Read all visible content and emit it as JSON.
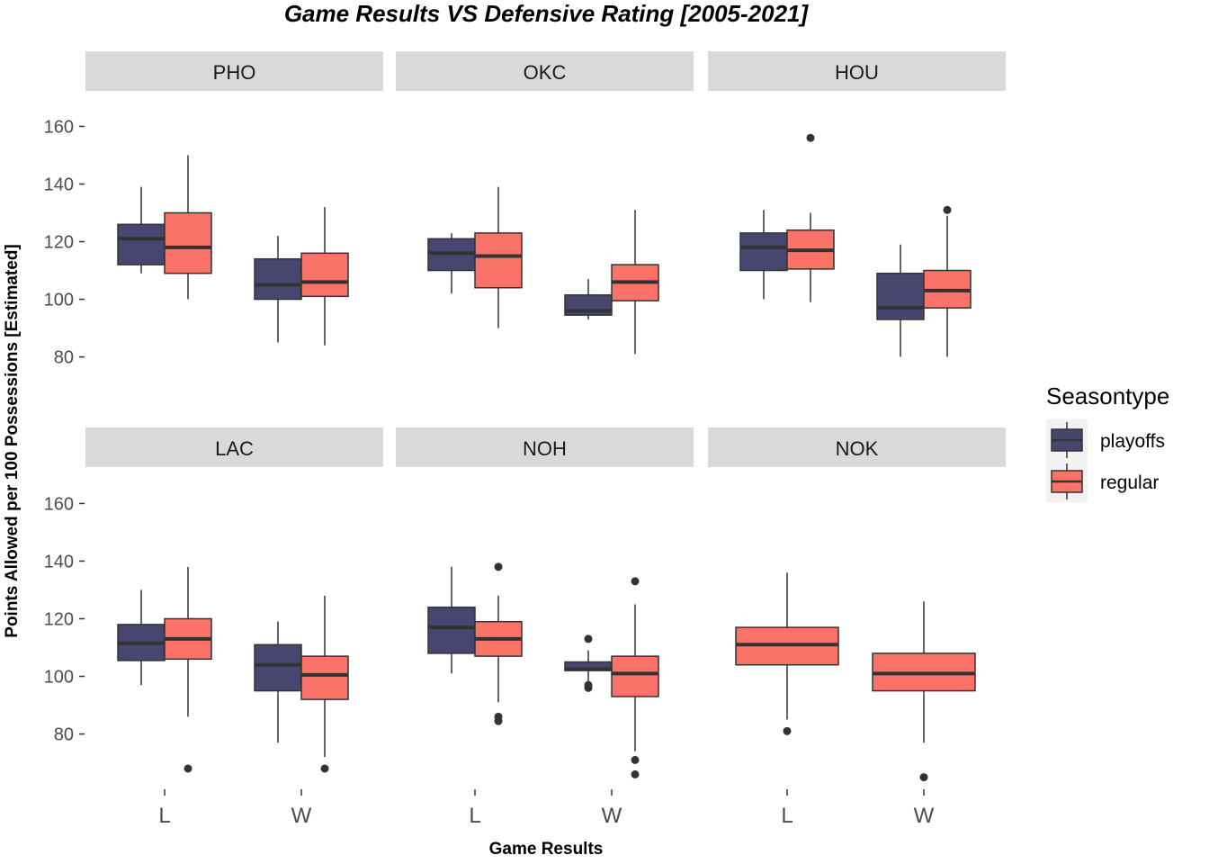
{
  "chart_data": {
    "type": "boxplot",
    "title": "Game Results  VS  Defensive Rating [2005-2021]",
    "xlabel": "Game Results",
    "ylabel": "Points Allowed per 100 Possessions [Estimated]",
    "categories": [
      "L",
      "W"
    ],
    "ylim": [
      63,
      172
    ],
    "yticks": [
      80,
      100,
      120,
      140,
      160
    ],
    "grid": false,
    "legend": {
      "title": "Seasontype",
      "position": "right",
      "entries": [
        {
          "name": "playoffs",
          "color": "#47466f"
        },
        {
          "name": "regular",
          "color": "#fa7268"
        }
      ]
    },
    "panels": [
      {
        "team": "PHO",
        "boxes": [
          {
            "x": "L",
            "series": "playoffs",
            "min": 109,
            "q1": 112,
            "median": 121,
            "q3": 126,
            "max": 139,
            "outliers": []
          },
          {
            "x": "L",
            "series": "regular",
            "min": 100,
            "q1": 109,
            "median": 118,
            "q3": 130,
            "max": 150,
            "outliers": []
          },
          {
            "x": "W",
            "series": "playoffs",
            "min": 85,
            "q1": 100,
            "median": 105,
            "q3": 114,
            "max": 122,
            "outliers": []
          },
          {
            "x": "W",
            "series": "regular",
            "min": 84,
            "q1": 101,
            "median": 106,
            "q3": 116,
            "max": 132,
            "outliers": []
          }
        ]
      },
      {
        "team": "OKC",
        "boxes": [
          {
            "x": "L",
            "series": "playoffs",
            "min": 102,
            "q1": 110,
            "median": 116,
            "q3": 121,
            "max": 123,
            "outliers": []
          },
          {
            "x": "L",
            "series": "regular",
            "min": 90,
            "q1": 104,
            "median": 115,
            "q3": 123,
            "max": 139,
            "outliers": []
          },
          {
            "x": "W",
            "series": "playoffs",
            "min": 93,
            "q1": 94.5,
            "median": 96,
            "q3": 101.5,
            "max": 107,
            "outliers": []
          },
          {
            "x": "W",
            "series": "regular",
            "min": 81,
            "q1": 99.5,
            "median": 106,
            "q3": 112,
            "max": 131,
            "outliers": []
          }
        ]
      },
      {
        "team": "HOU",
        "boxes": [
          {
            "x": "L",
            "series": "playoffs",
            "min": 100,
            "q1": 110,
            "median": 118,
            "q3": 123,
            "max": 131,
            "outliers": []
          },
          {
            "x": "L",
            "series": "regular",
            "min": 99,
            "q1": 110.5,
            "median": 117,
            "q3": 124,
            "max": 130,
            "outliers": [
              156
            ]
          },
          {
            "x": "W",
            "series": "playoffs",
            "min": 80,
            "q1": 93,
            "median": 97,
            "q3": 109,
            "max": 119,
            "outliers": []
          },
          {
            "x": "W",
            "series": "regular",
            "min": 80,
            "q1": 97,
            "median": 103,
            "q3": 110,
            "max": 129,
            "outliers": [
              131
            ]
          }
        ]
      },
      {
        "team": "LAC",
        "boxes": [
          {
            "x": "L",
            "series": "playoffs",
            "min": 97,
            "q1": 105.5,
            "median": 111.5,
            "q3": 118,
            "max": 130,
            "outliers": []
          },
          {
            "x": "L",
            "series": "regular",
            "min": 86,
            "q1": 106,
            "median": 113,
            "q3": 120,
            "max": 138,
            "outliers": [
              68
            ]
          },
          {
            "x": "W",
            "series": "playoffs",
            "min": 77,
            "q1": 95,
            "median": 104,
            "q3": 111,
            "max": 119,
            "outliers": []
          },
          {
            "x": "W",
            "series": "regular",
            "min": 72,
            "q1": 92,
            "median": 100.5,
            "q3": 107,
            "max": 128,
            "outliers": [
              68
            ]
          }
        ]
      },
      {
        "team": "NOH",
        "boxes": [
          {
            "x": "L",
            "series": "playoffs",
            "min": 101,
            "q1": 108,
            "median": 117,
            "q3": 124,
            "max": 138,
            "outliers": []
          },
          {
            "x": "L",
            "series": "regular",
            "min": 91,
            "q1": 107,
            "median": 113,
            "q3": 119,
            "max": 128,
            "outliers": [
              138,
              86,
              84.5
            ]
          },
          {
            "x": "W",
            "series": "playoffs",
            "min": 98,
            "q1": 102,
            "median": 102.5,
            "q3": 105,
            "max": 109,
            "outliers": [
              113,
              97,
              96
            ]
          },
          {
            "x": "W",
            "series": "regular",
            "min": 74,
            "q1": 93,
            "median": 101,
            "q3": 107,
            "max": 125,
            "outliers": [
              133,
              71,
              66
            ]
          }
        ]
      },
      {
        "team": "NOK",
        "boxes": [
          {
            "x": "L",
            "series": "regular",
            "min": 85,
            "q1": 104,
            "median": 111,
            "q3": 117,
            "max": 136,
            "outliers": [
              81
            ]
          },
          {
            "x": "W",
            "series": "regular",
            "min": 77,
            "q1": 95,
            "median": 101,
            "q3": 108,
            "max": 126,
            "outliers": [
              65
            ]
          }
        ]
      }
    ]
  }
}
